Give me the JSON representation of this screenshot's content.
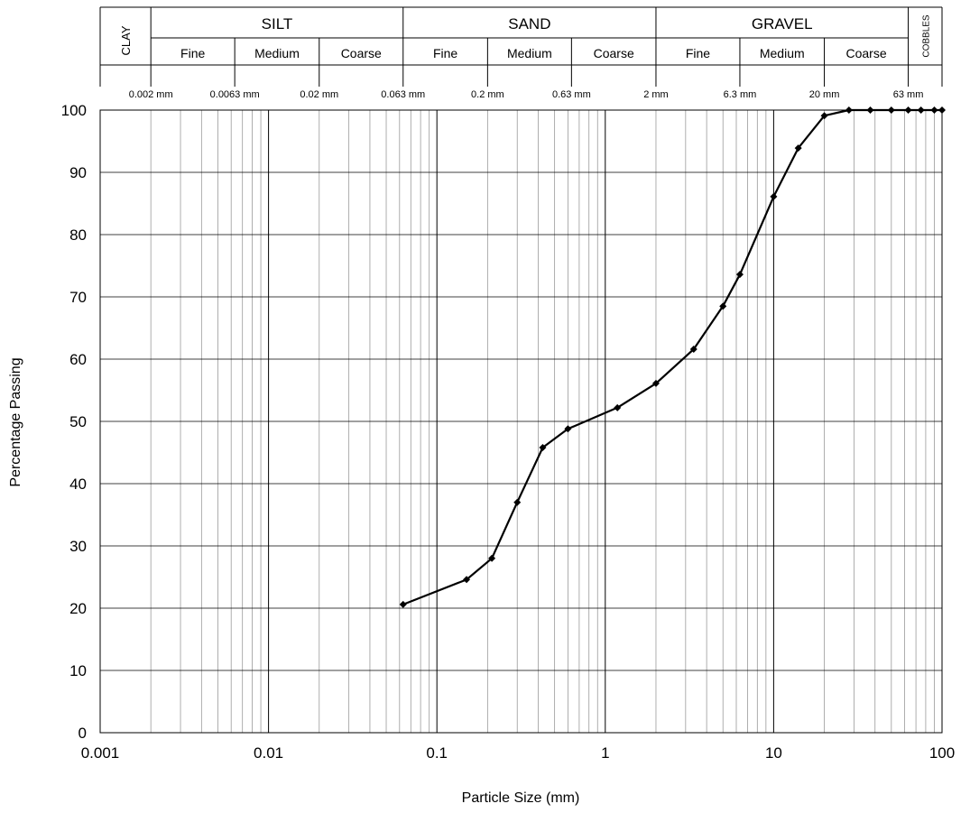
{
  "classification": {
    "clay": "CLAY",
    "cobbles": "COBBLES",
    "groups": [
      {
        "name": "SILT",
        "from": 0.002,
        "to": 0.063,
        "subs": [
          {
            "label": "Fine",
            "from": 0.002,
            "to": 0.0063
          },
          {
            "label": "Medium",
            "from": 0.0063,
            "to": 0.02
          },
          {
            "label": "Coarse",
            "from": 0.02,
            "to": 0.063
          }
        ]
      },
      {
        "name": "SAND",
        "from": 0.063,
        "to": 2,
        "subs": [
          {
            "label": "Fine",
            "from": 0.063,
            "to": 0.2
          },
          {
            "label": "Medium",
            "from": 0.2,
            "to": 0.63
          },
          {
            "label": "Coarse",
            "from": 0.63,
            "to": 2
          }
        ]
      },
      {
        "name": "GRAVEL",
        "from": 2,
        "to": 63,
        "subs": [
          {
            "label": "Fine",
            "from": 2,
            "to": 6.3
          },
          {
            "label": "Medium",
            "from": 6.3,
            "to": 20
          },
          {
            "label": "Coarse",
            "from": 20,
            "to": 63
          }
        ]
      }
    ],
    "boundaries": [
      {
        "value": 0.002,
        "label": "0.002 mm"
      },
      {
        "value": 0.0063,
        "label": "0.0063 mm"
      },
      {
        "value": 0.02,
        "label": "0.02 mm"
      },
      {
        "value": 0.063,
        "label": "0.063 mm"
      },
      {
        "value": 0.2,
        "label": "0.2 mm"
      },
      {
        "value": 0.63,
        "label": "0.63 mm"
      },
      {
        "value": 2,
        "label": "2 mm"
      },
      {
        "value": 6.3,
        "label": "6.3 mm"
      },
      {
        "value": 20,
        "label": "20 mm"
      },
      {
        "value": 63,
        "label": "63 mm"
      }
    ]
  },
  "chart_data": {
    "type": "line",
    "title": "",
    "xlabel": "Particle Size (mm)",
    "ylabel": "Percentage Passing",
    "xscale": "log",
    "xlim": [
      0.001,
      100
    ],
    "ylim": [
      0,
      100
    ],
    "grid": true,
    "xticks": [
      0.001,
      0.01,
      0.1,
      1,
      10,
      100
    ],
    "xtick_labels": [
      "0.001",
      "0.01",
      "0.1",
      "1",
      "10",
      "100"
    ],
    "yticks": [
      0,
      10,
      20,
      30,
      40,
      50,
      60,
      70,
      80,
      90,
      100
    ],
    "ytick_labels": [
      "0",
      "10",
      "20",
      "30",
      "40",
      "50",
      "60",
      "70",
      "80",
      "90",
      "100"
    ],
    "series": [
      {
        "color": "#000000",
        "marker": "diamond",
        "x": [
          0.063,
          0.15,
          0.212,
          0.3,
          0.425,
          0.6,
          1.18,
          2,
          3.35,
          5,
          6.3,
          10,
          14,
          20,
          28,
          37.5,
          50,
          63,
          75,
          90,
          100
        ],
        "y": [
          20.6,
          24.6,
          28.0,
          37.0,
          45.8,
          48.8,
          52.2,
          56.1,
          61.6,
          68.5,
          73.6,
          86.1,
          93.9,
          99.1,
          100,
          100,
          100,
          100,
          100,
          100,
          100
        ]
      }
    ]
  }
}
